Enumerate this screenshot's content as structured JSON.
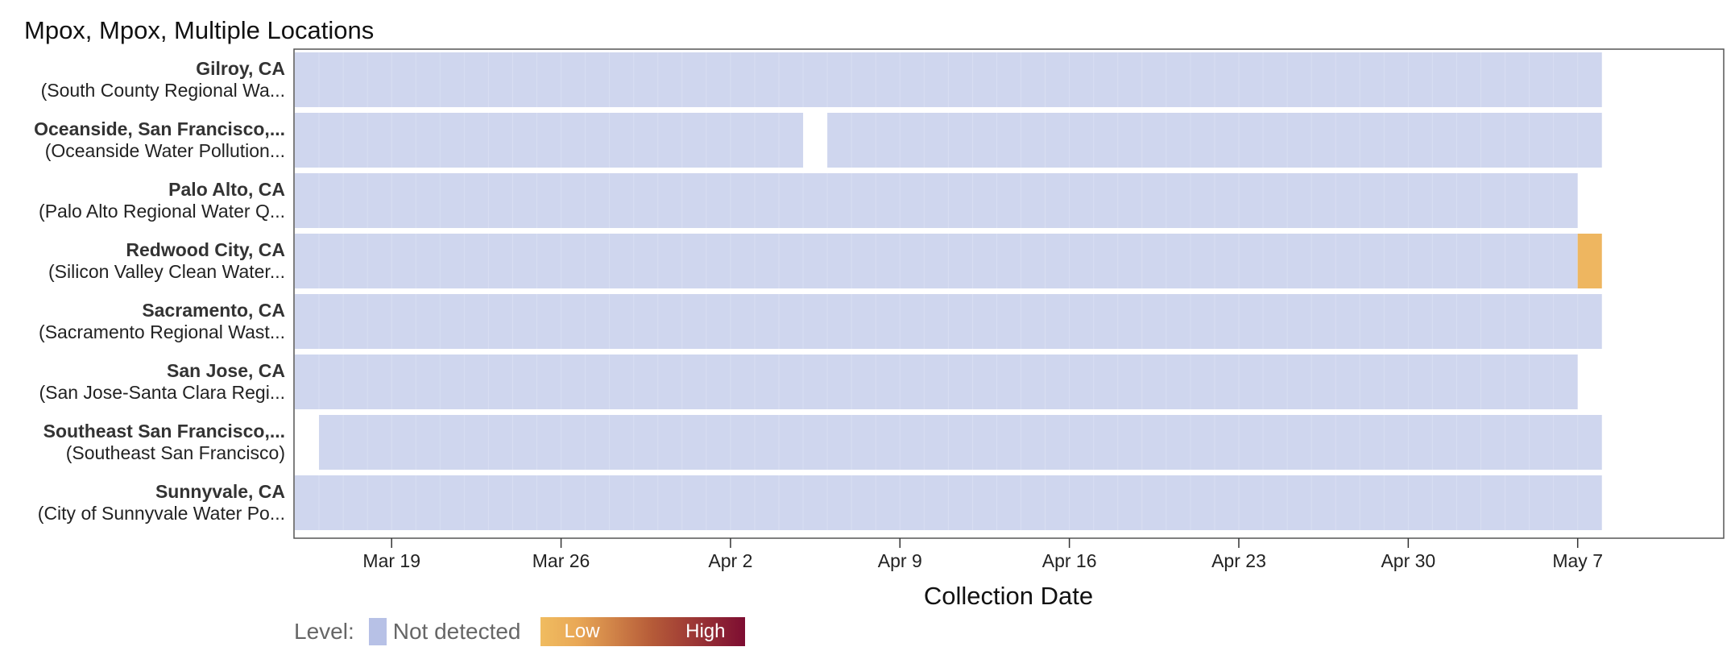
{
  "title": "Mpox, Mpox, Multiple Locations",
  "chart_data": {
    "type": "heatmap",
    "title": "Mpox, Mpox, Multiple Locations",
    "xlabel": "Collection Date",
    "x_start": "2024-03-15",
    "x_end": "2024-05-08",
    "x_domain": [
      "2024-03-15",
      "2024-05-13"
    ],
    "x_ticks": [
      {
        "date": "2024-03-19",
        "label": "Mar 19"
      },
      {
        "date": "2024-03-26",
        "label": "Mar 26"
      },
      {
        "date": "2024-04-02",
        "label": "Apr 2"
      },
      {
        "date": "2024-04-09",
        "label": "Apr 9"
      },
      {
        "date": "2024-04-16",
        "label": "Apr 16"
      },
      {
        "date": "2024-04-23",
        "label": "Apr 23"
      },
      {
        "date": "2024-04-30",
        "label": "Apr 30"
      },
      {
        "date": "2024-05-07",
        "label": "May 7"
      }
    ],
    "rows": [
      {
        "name": "Gilroy, CA",
        "site": "(South County Regional Wa...",
        "segments": [
          {
            "start": "2024-03-15",
            "end": "2024-05-08",
            "level": "Not detected"
          }
        ]
      },
      {
        "name": "Oceanside, San Francisco,...",
        "site": "(Oceanside Water Pollution...",
        "segments": [
          {
            "start": "2024-03-15",
            "end": "2024-04-05",
            "level": "Not detected"
          },
          {
            "start": "2024-04-06",
            "end": "2024-05-08",
            "level": "Not detected"
          }
        ]
      },
      {
        "name": "Palo Alto, CA",
        "site": "(Palo Alto Regional Water Q...",
        "segments": [
          {
            "start": "2024-03-15",
            "end": "2024-05-07",
            "level": "Not detected"
          }
        ]
      },
      {
        "name": "Redwood City, CA",
        "site": "(Silicon Valley Clean Water...",
        "segments": [
          {
            "start": "2024-03-15",
            "end": "2024-05-07",
            "level": "Not detected"
          },
          {
            "start": "2024-05-07",
            "end": "2024-05-08",
            "level": "Low"
          }
        ]
      },
      {
        "name": "Sacramento, CA",
        "site": "(Sacramento Regional Wast...",
        "segments": [
          {
            "start": "2024-03-15",
            "end": "2024-05-08",
            "level": "Not detected"
          }
        ]
      },
      {
        "name": "San Jose, CA",
        "site": "(San Jose-Santa Clara Regi...",
        "segments": [
          {
            "start": "2024-03-15",
            "end": "2024-05-07",
            "level": "Not detected"
          }
        ]
      },
      {
        "name": "Southeast San Francisco,...",
        "site": "(Southeast San Francisco)",
        "segments": [
          {
            "start": "2024-03-16",
            "end": "2024-05-08",
            "level": "Not detected"
          }
        ]
      },
      {
        "name": "Sunnyvale, CA",
        "site": "(City of Sunnyvale Water Po...",
        "segments": [
          {
            "start": "2024-03-15",
            "end": "2024-05-08",
            "level": "Not detected"
          }
        ]
      }
    ],
    "colors": {
      "Not detected": "#cfd6ee",
      "Low": "#eeb660",
      "High": "#7d0d32"
    },
    "grid": false
  },
  "legend": {
    "label": "Level:",
    "not_detected": "Not detected",
    "low": "Low",
    "high": "High"
  }
}
